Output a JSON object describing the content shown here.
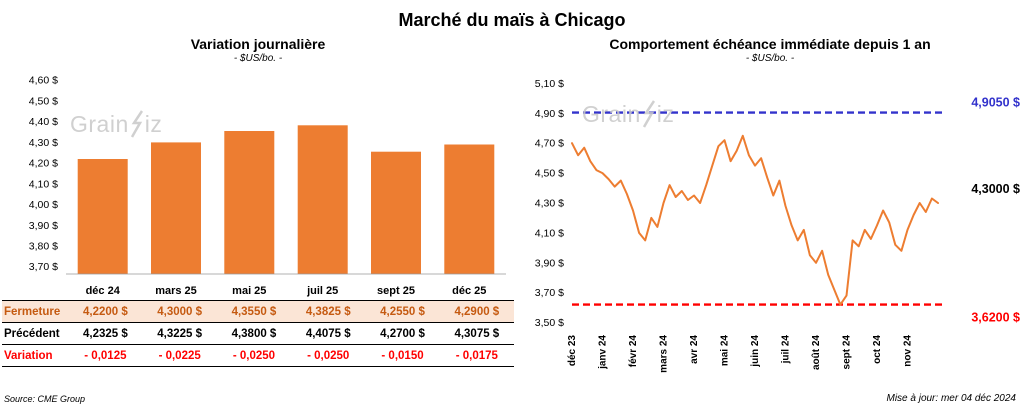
{
  "page": {
    "title": "Marché du maïs à Chicago",
    "watermark": {
      "pre": "Grain",
      "post": "iz"
    },
    "source": "Source: CME Group",
    "updated": "Mise à jour: mer 04 déc 2024"
  },
  "chart_data": [
    {
      "type": "bar",
      "title": "Variation journalière",
      "subtitle": "- $US/bo. -",
      "categories": [
        "déc 24",
        "mars 25",
        "mai 25",
        "juil 25",
        "sept 25",
        "déc 25"
      ],
      "values": [
        4.22,
        4.3,
        4.355,
        4.3825,
        4.255,
        4.29
      ],
      "bar_color": "#ED7D31",
      "ylim": [
        3.665,
        4.63
      ],
      "grid": false,
      "legend": false,
      "yticks": [
        {
          "v": 4.6,
          "label": "4,60 $"
        },
        {
          "v": 4.5,
          "label": "4,50 $"
        },
        {
          "v": 4.4,
          "label": "4,40 $"
        },
        {
          "v": 4.3,
          "label": "4,30 $"
        },
        {
          "v": 4.2,
          "label": "4,20 $"
        },
        {
          "v": 4.1,
          "label": "4,10 $"
        },
        {
          "v": 4.0,
          "label": "4,00 $"
        },
        {
          "v": 3.9,
          "label": "3,90 $"
        },
        {
          "v": 3.8,
          "label": "3,80 $"
        },
        {
          "v": 3.7,
          "label": "3,70 $"
        }
      ]
    },
    {
      "type": "line",
      "title": "Comportement échéance immédiate depuis 1 an",
      "subtitle": "- $US/bo. -",
      "line_color": "#ED7D31",
      "ylim": [
        3.45,
        5.15
      ],
      "grid": false,
      "legend": false,
      "yticks": [
        {
          "v": 5.1,
          "label": "5,10 $"
        },
        {
          "v": 4.9,
          "label": "4,90 $"
        },
        {
          "v": 4.7,
          "label": "4,70 $"
        },
        {
          "v": 4.5,
          "label": "4,50 $"
        },
        {
          "v": 4.3,
          "label": "4,30 $"
        },
        {
          "v": 4.1,
          "label": "4,10 $"
        },
        {
          "v": 3.9,
          "label": "3,90 $"
        },
        {
          "v": 3.7,
          "label": "3,70 $"
        },
        {
          "v": 3.5,
          "label": "3,50 $"
        }
      ],
      "x_ticks": [
        {
          "i": 0,
          "label": "déc 23"
        },
        {
          "i": 5,
          "label": "janv 24"
        },
        {
          "i": 10,
          "label": "févr 24"
        },
        {
          "i": 15,
          "label": "mars 24"
        },
        {
          "i": 20,
          "label": "avr 24"
        },
        {
          "i": 25,
          "label": "mai 24"
        },
        {
          "i": 30,
          "label": "juin 24"
        },
        {
          "i": 35,
          "label": "juil 24"
        },
        {
          "i": 40,
          "label": "août 24"
        },
        {
          "i": 45,
          "label": "sept 24"
        },
        {
          "i": 50,
          "label": "oct 24"
        },
        {
          "i": 55,
          "label": "nov 24"
        }
      ],
      "values": [
        4.7,
        4.62,
        4.67,
        4.58,
        4.52,
        4.5,
        4.46,
        4.41,
        4.45,
        4.36,
        4.25,
        4.1,
        4.05,
        4.2,
        4.14,
        4.3,
        4.42,
        4.34,
        4.38,
        4.32,
        4.35,
        4.3,
        4.42,
        4.55,
        4.68,
        4.72,
        4.58,
        4.65,
        4.75,
        4.62,
        4.55,
        4.6,
        4.47,
        4.35,
        4.45,
        4.28,
        4.15,
        4.05,
        4.12,
        3.95,
        3.9,
        3.98,
        3.82,
        3.72,
        3.62,
        3.68,
        4.05,
        4.01,
        4.12,
        4.06,
        4.15,
        4.25,
        4.17,
        4.02,
        3.98,
        4.12,
        4.22,
        4.3,
        4.24,
        4.33,
        4.3
      ],
      "ref_lines": [
        {
          "v": 4.905,
          "label": "4,9050 $",
          "color": "#3333CC"
        },
        {
          "v": 3.62,
          "label": "3,6200 $",
          "color": "#FF0000"
        }
      ],
      "last_label": {
        "v": 4.3,
        "label": "4,3000 $",
        "color": "#000000"
      }
    }
  ],
  "table": {
    "rows": [
      {
        "key": "fermeture",
        "label": "Fermeture",
        "values": [
          "4,2200  $",
          "4,3000  $",
          "4,3550  $",
          "4,3825  $",
          "4,2550  $",
          "4,2900  $"
        ]
      },
      {
        "key": "precedent",
        "label": "Précédent",
        "values": [
          "4,2325  $",
          "4,3225  $",
          "4,3800  $",
          "4,4075  $",
          "4,2700  $",
          "4,3075  $"
        ]
      },
      {
        "key": "variation",
        "label": "Variation",
        "values": [
          "- 0,0125",
          "- 0,0225",
          "- 0,0250",
          "- 0,0250",
          "- 0,0150",
          "- 0,0175"
        ]
      }
    ]
  }
}
